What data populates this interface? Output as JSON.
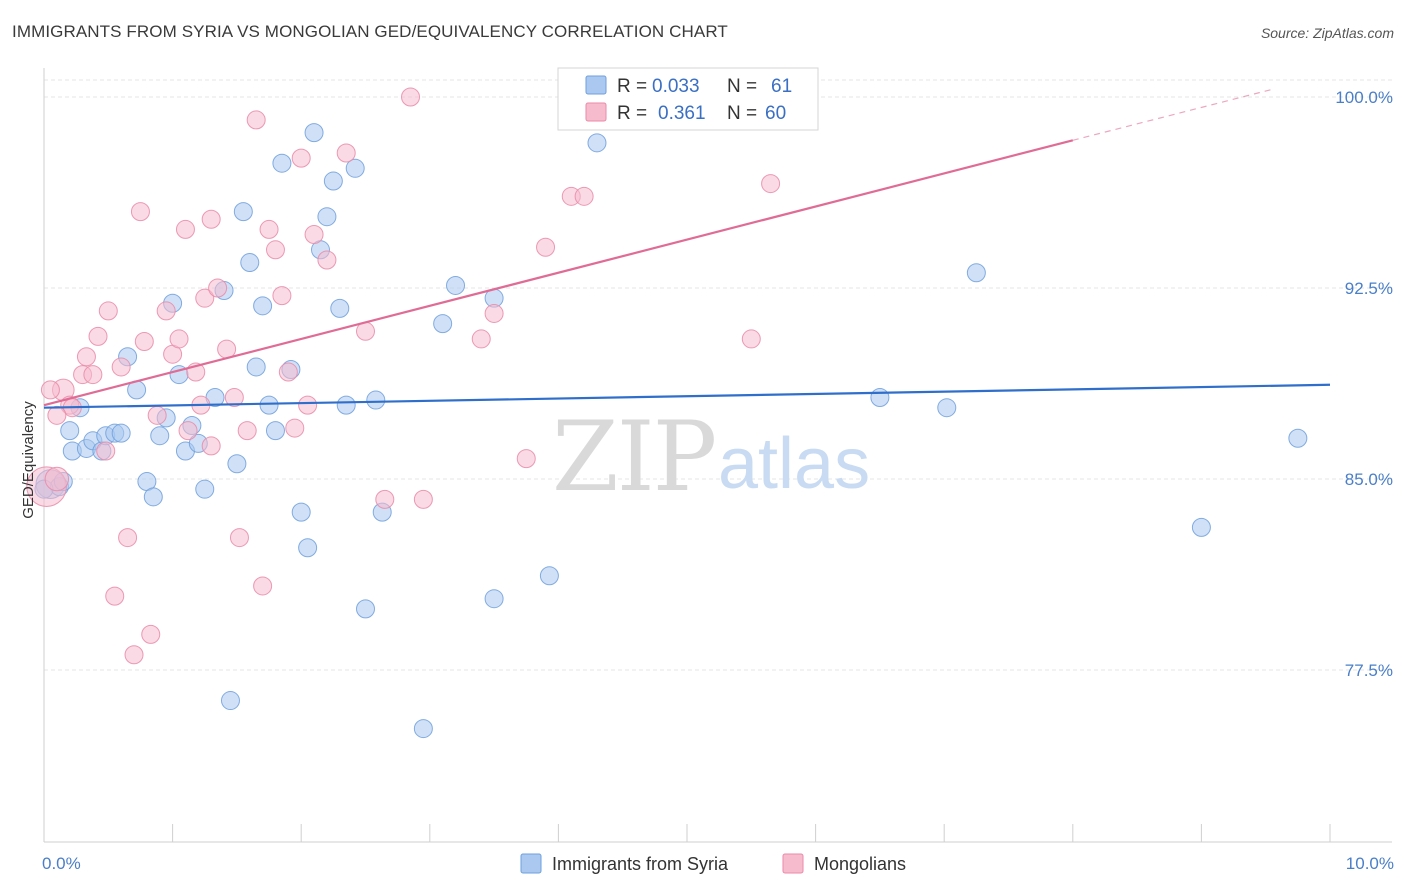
{
  "title": "IMMIGRANTS FROM SYRIA VS MONGOLIAN GED/EQUIVALENCY CORRELATION CHART",
  "source": "Source: ZipAtlas.com",
  "watermark": {
    "zip": "ZIP",
    "atlas": "atlas"
  },
  "colors": {
    "blue_fill": "#aac8f0",
    "blue_stroke": "#6f9fdc",
    "blue_line": "#2f6fcb",
    "pink_fill": "#f6bccd",
    "pink_stroke": "#e98aa8",
    "pink_line": "#e06c96",
    "grid": "#e6e6e6",
    "axis_label": "#4a7fc8"
  },
  "legend": {
    "rows": [
      {
        "r_label": "R = ",
        "r_value": "0.033",
        "n_label": "N = ",
        "n_value": "61",
        "series": "blue"
      },
      {
        "r_label": "R = ",
        "r_value": "0.361",
        "n_label": "N = ",
        "n_value": "60",
        "series": "pink"
      }
    ]
  },
  "bottom_legend": [
    {
      "label": "Immigrants from Syria",
      "series": "blue"
    },
    {
      "label": "Mongolians",
      "series": "pink"
    }
  ],
  "chart_data": {
    "type": "scatter",
    "title": "IMMIGRANTS FROM SYRIA VS MONGOLIAN GED/EQUIVALENCY CORRELATION CHART",
    "xlabel": "",
    "ylabel": "GED/Equivalency",
    "xlim": [
      0,
      10
    ],
    "ylim": [
      70.5,
      101.5
    ],
    "x_tick_labels": [
      {
        "value": 0,
        "label": "0.0%"
      },
      {
        "value": 10,
        "label": "10.0%"
      }
    ],
    "x_minor_ticks": [
      1,
      2,
      3,
      4,
      5,
      6,
      7,
      8,
      9
    ],
    "y_ticks": [
      {
        "value": 100,
        "label": "100.0%"
      },
      {
        "value": 92.5,
        "label": "92.5%"
      },
      {
        "value": 85,
        "label": "85.0%"
      },
      {
        "value": 77.5,
        "label": "77.5%"
      }
    ],
    "grid": true,
    "series": [
      {
        "name": "Immigrants from Syria",
        "color": "blue",
        "trend": {
          "x": [
            0,
            10
          ],
          "y": [
            87.8,
            88.7
          ],
          "dashed_from": null
        },
        "points": [
          [
            0.05,
            84.8,
            1.6
          ],
          [
            0.12,
            84.7,
            1
          ],
          [
            0.15,
            84.9,
            1
          ],
          [
            0.2,
            86.9,
            1
          ],
          [
            0.22,
            86.1,
            1
          ],
          [
            0.28,
            87.8,
            1
          ],
          [
            0.33,
            86.2,
            1
          ],
          [
            0.38,
            86.5,
            1
          ],
          [
            0.45,
            86.1,
            1
          ],
          [
            0.48,
            86.7,
            1
          ],
          [
            0.55,
            86.8,
            1
          ],
          [
            0.6,
            86.8,
            1
          ],
          [
            0.65,
            89.8,
            1
          ],
          [
            0.72,
            88.5,
            1
          ],
          [
            0.8,
            84.9,
            1
          ],
          [
            0.85,
            84.3,
            1
          ],
          [
            0.9,
            86.7,
            1
          ],
          [
            0.95,
            87.4,
            1
          ],
          [
            1.0,
            91.9,
            1
          ],
          [
            1.05,
            89.1,
            1
          ],
          [
            1.1,
            86.1,
            1
          ],
          [
            1.15,
            87.1,
            1
          ],
          [
            1.2,
            86.4,
            1
          ],
          [
            1.25,
            84.6,
            1
          ],
          [
            1.33,
            88.2,
            1
          ],
          [
            1.4,
            92.4,
            1
          ],
          [
            1.45,
            76.3,
            1
          ],
          [
            1.5,
            85.6,
            1
          ],
          [
            1.55,
            95.5,
            1
          ],
          [
            1.6,
            93.5,
            1
          ],
          [
            1.65,
            89.4,
            1
          ],
          [
            1.7,
            91.8,
            1
          ],
          [
            1.75,
            87.9,
            1
          ],
          [
            1.8,
            86.9,
            1
          ],
          [
            1.85,
            97.4,
            1
          ],
          [
            1.92,
            89.3,
            1
          ],
          [
            2.0,
            83.7,
            1
          ],
          [
            2.05,
            82.3,
            1
          ],
          [
            2.1,
            98.6,
            1
          ],
          [
            2.15,
            94.0,
            1
          ],
          [
            2.2,
            95.3,
            1
          ],
          [
            2.25,
            96.7,
            1
          ],
          [
            2.3,
            91.7,
            1
          ],
          [
            2.35,
            87.9,
            1
          ],
          [
            2.42,
            97.2,
            1
          ],
          [
            2.5,
            79.9,
            1
          ],
          [
            2.58,
            88.1,
            1
          ],
          [
            2.63,
            83.7,
            1
          ],
          [
            2.95,
            75.2,
            1
          ],
          [
            3.1,
            91.1,
            1
          ],
          [
            3.2,
            92.6,
            1
          ],
          [
            3.5,
            80.3,
            1
          ],
          [
            3.5,
            92.1,
            1
          ],
          [
            3.93,
            81.2,
            1
          ],
          [
            4.3,
            98.2,
            1
          ],
          [
            6.5,
            88.2,
            1
          ],
          [
            7.02,
            87.8,
            1
          ],
          [
            7.25,
            93.1,
            1
          ],
          [
            9.0,
            83.1,
            1
          ],
          [
            9.75,
            86.6,
            1
          ],
          [
            0.0,
            84.6,
            1
          ]
        ]
      },
      {
        "name": "Mongolians",
        "color": "pink",
        "trend": {
          "x": [
            0,
            8.0
          ],
          "y": [
            87.9,
            98.3
          ],
          "dashed_from": 8.0,
          "dashed_to": [
            9.55,
            100.3
          ]
        },
        "points": [
          [
            0.02,
            84.7,
            2.2
          ],
          [
            0.1,
            85.0,
            1.3
          ],
          [
            0.15,
            88.5,
            1.2
          ],
          [
            0.2,
            87.9,
            1
          ],
          [
            0.22,
            87.8,
            1
          ],
          [
            0.3,
            89.1,
            1
          ],
          [
            0.33,
            89.8,
            1
          ],
          [
            0.38,
            89.1,
            1
          ],
          [
            0.42,
            90.6,
            1
          ],
          [
            0.48,
            86.1,
            1
          ],
          [
            0.5,
            91.6,
            1
          ],
          [
            0.55,
            80.4,
            1
          ],
          [
            0.6,
            89.4,
            1
          ],
          [
            0.65,
            82.7,
            1
          ],
          [
            0.7,
            78.1,
            1
          ],
          [
            0.75,
            95.5,
            1
          ],
          [
            0.78,
            90.4,
            1
          ],
          [
            0.83,
            78.9,
            1
          ],
          [
            0.88,
            87.5,
            1
          ],
          [
            0.95,
            91.6,
            1
          ],
          [
            1.0,
            89.9,
            1
          ],
          [
            1.05,
            90.5,
            1
          ],
          [
            1.1,
            94.8,
            1
          ],
          [
            1.12,
            86.9,
            1
          ],
          [
            1.18,
            89.2,
            1
          ],
          [
            1.22,
            87.9,
            1
          ],
          [
            1.25,
            92.1,
            1
          ],
          [
            1.3,
            95.2,
            1
          ],
          [
            1.35,
            92.5,
            1
          ],
          [
            1.42,
            90.1,
            1
          ],
          [
            1.48,
            88.2,
            1
          ],
          [
            1.52,
            82.7,
            1
          ],
          [
            1.58,
            86.9,
            1
          ],
          [
            1.65,
            99.1,
            1
          ],
          [
            1.7,
            80.8,
            1
          ],
          [
            1.75,
            94.8,
            1
          ],
          [
            1.8,
            94.0,
            1
          ],
          [
            1.85,
            92.2,
            1
          ],
          [
            1.9,
            89.2,
            1
          ],
          [
            1.95,
            87.0,
            1
          ],
          [
            2.0,
            97.6,
            1
          ],
          [
            2.05,
            87.9,
            1
          ],
          [
            2.1,
            94.6,
            1
          ],
          [
            2.2,
            93.6,
            1
          ],
          [
            2.35,
            97.8,
            1
          ],
          [
            2.5,
            90.8,
            1
          ],
          [
            2.65,
            84.2,
            1
          ],
          [
            2.85,
            100.0,
            1
          ],
          [
            2.95,
            84.2,
            1
          ],
          [
            3.4,
            90.5,
            1
          ],
          [
            3.5,
            91.5,
            1
          ],
          [
            3.75,
            85.8,
            1
          ],
          [
            3.9,
            94.1,
            1
          ],
          [
            4.1,
            96.1,
            1
          ],
          [
            4.2,
            96.1,
            1
          ],
          [
            5.5,
            90.5,
            1
          ],
          [
            5.65,
            96.6,
            1
          ],
          [
            0.05,
            88.5,
            1
          ],
          [
            1.3,
            86.3,
            1
          ],
          [
            0.1,
            87.5,
            1
          ]
        ]
      }
    ]
  }
}
